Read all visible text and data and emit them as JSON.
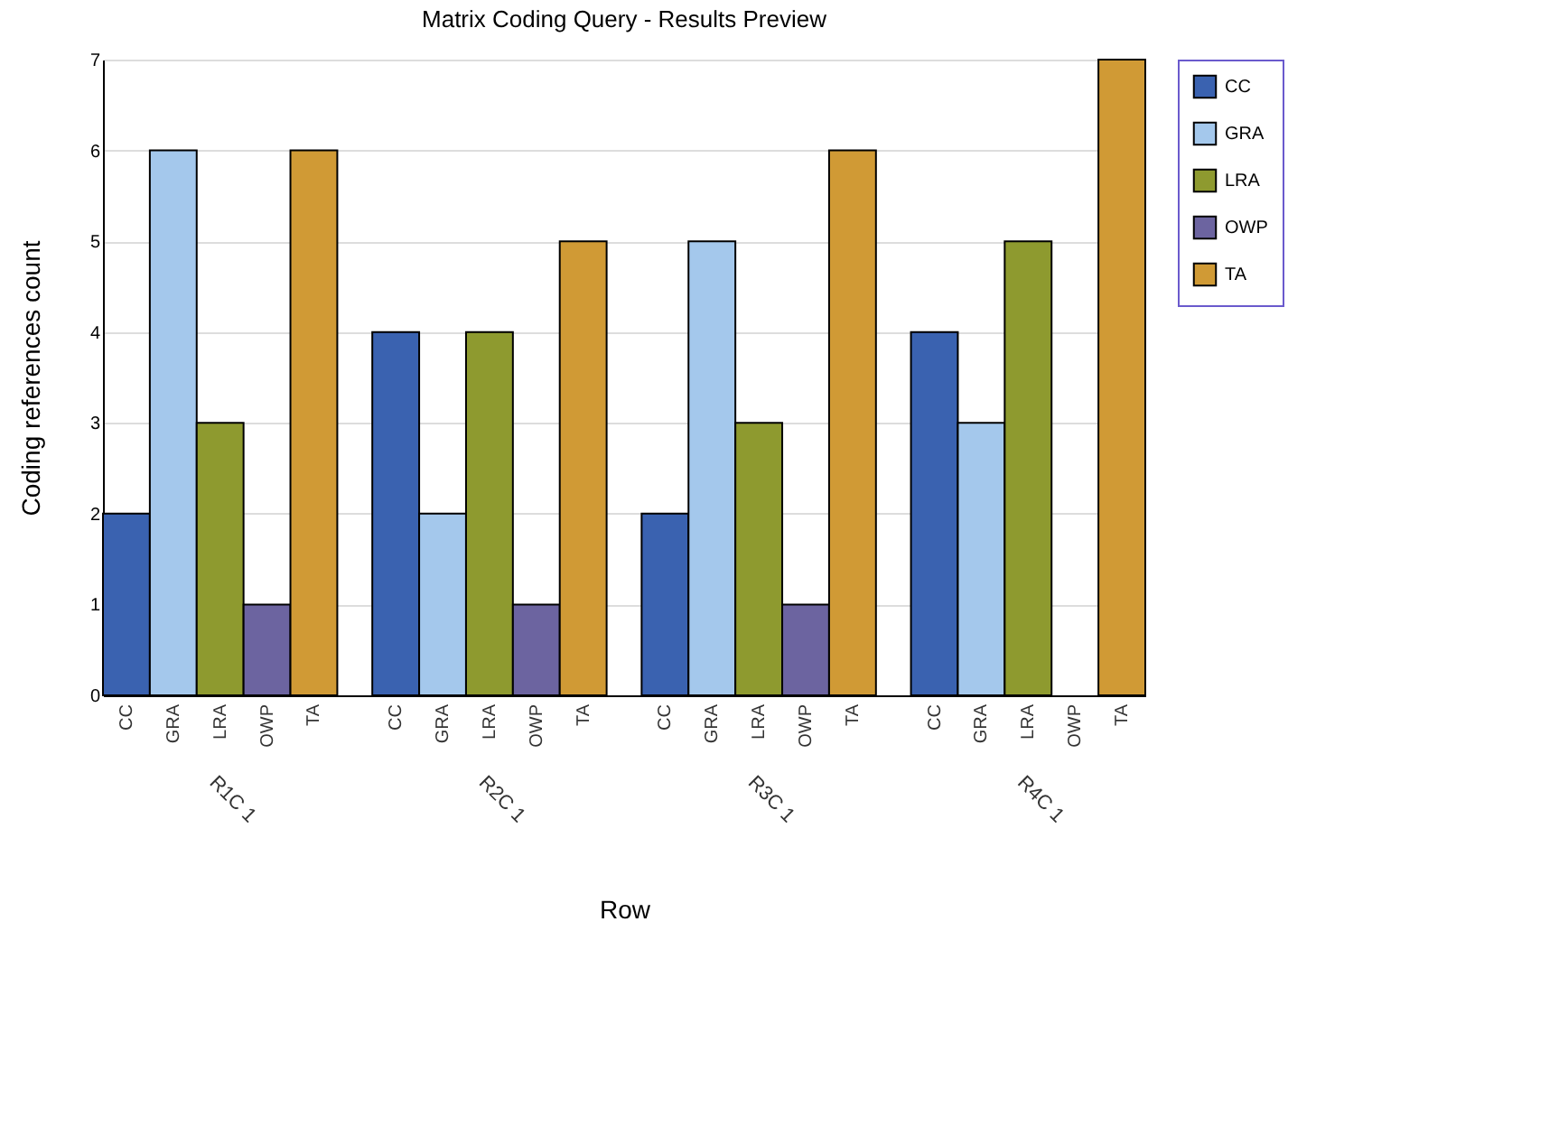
{
  "chart_data": {
    "type": "bar",
    "title": "Matrix Coding Query - Results Preview",
    "xlabel": "Row",
    "ylabel": "Coding references count",
    "categories": [
      "R1C 1",
      "R2C 1",
      "R3C 1",
      "R4C 1"
    ],
    "series": [
      {
        "name": "CC",
        "color": "#3a62b0",
        "values": [
          2,
          4,
          2,
          4
        ]
      },
      {
        "name": "GRA",
        "color": "#a4c8ec",
        "values": [
          6,
          2,
          5,
          3
        ]
      },
      {
        "name": "LRA",
        "color": "#8e9a2f",
        "values": [
          3,
          4,
          3,
          5
        ]
      },
      {
        "name": "OWP",
        "color": "#6c64a0",
        "values": [
          1,
          1,
          1,
          0
        ]
      },
      {
        "name": "TA",
        "color": "#d09a35",
        "values": [
          6,
          5,
          6,
          7
        ]
      }
    ],
    "ylim": [
      0,
      7
    ],
    "yticks": [
      0,
      1,
      2,
      3,
      4,
      5,
      6,
      7
    ],
    "grid": "y",
    "legend": "right"
  }
}
